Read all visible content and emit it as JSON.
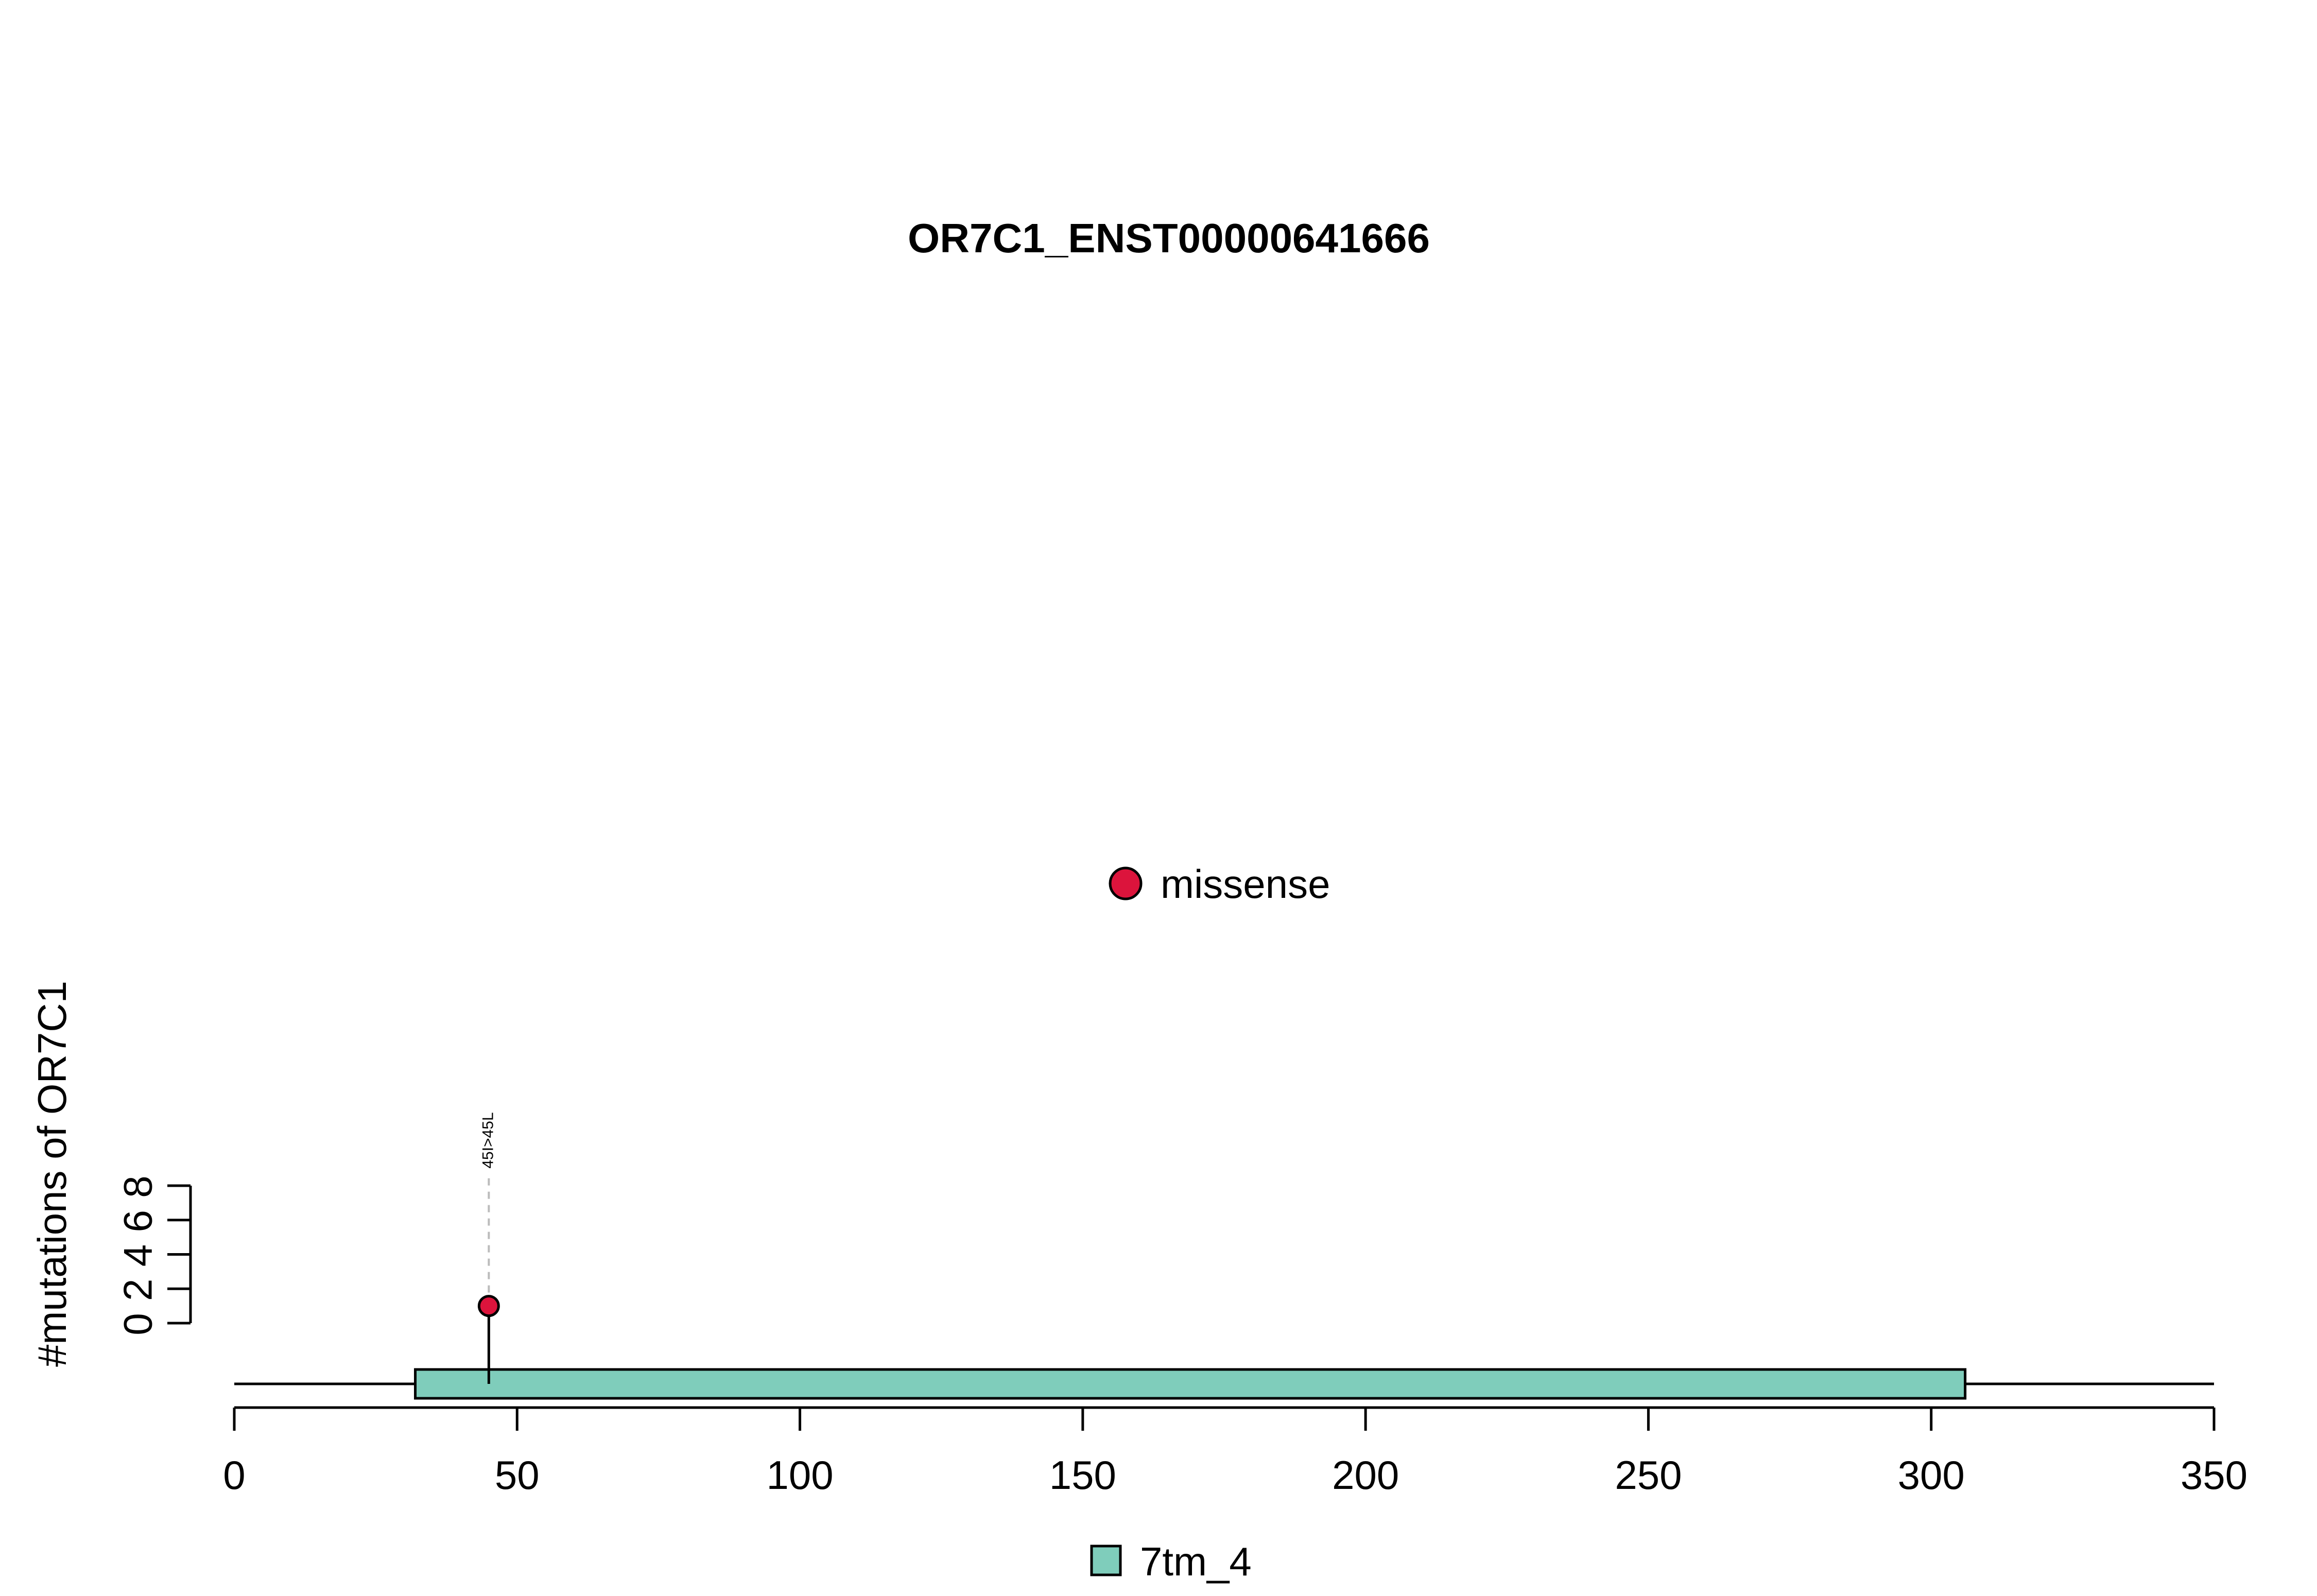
{
  "chart_data": {
    "type": "lollipop",
    "title": "OR7C1_ENST00000641666",
    "ylabel": "#mutations of OR7C1",
    "xlabel": "",
    "xlim": [
      0,
      350
    ],
    "x_ticks": [
      0,
      50,
      100,
      150,
      200,
      250,
      300,
      350
    ],
    "ylim": [
      0,
      8
    ],
    "y_ticks": [
      0,
      2,
      4,
      6,
      8
    ],
    "protein_length": 350,
    "domains": [
      {
        "name": "7tm_4",
        "start": 32,
        "end": 306,
        "color": "#7FCDBB"
      }
    ],
    "mutations": [
      {
        "position": 45,
        "count": 1,
        "label": "45I>45L",
        "type": "missense",
        "color": "#DC143C"
      }
    ],
    "mutation_legend": [
      {
        "label": "missense",
        "color": "#DC143C"
      }
    ],
    "domain_legend": [
      {
        "label": "7tm_4",
        "color": "#7FCDBB"
      }
    ],
    "grid": false
  }
}
